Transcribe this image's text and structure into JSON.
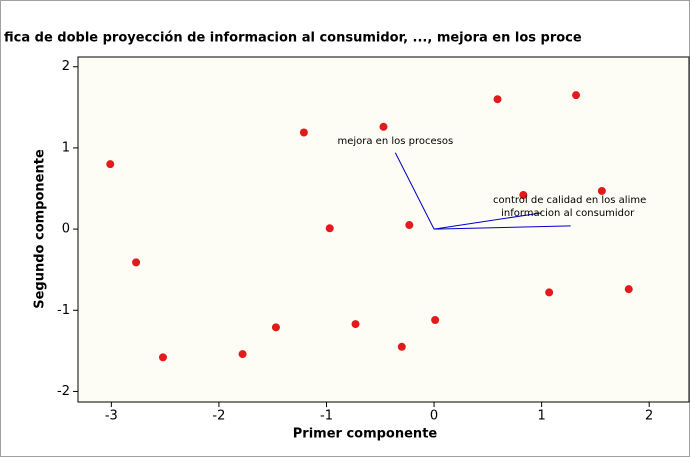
{
  "chart_data": {
    "type": "biplot",
    "title": "fica de doble proyección de informacion al consumidor, ..., mejora en los proce",
    "x_label": "Primer componente",
    "y_label": "Segundo componente",
    "point_color": "#e31a1c",
    "vector_color": "#0000cc",
    "x": [
      -3.01,
      -2.77,
      -2.52,
      -1.78,
      -1.47,
      -1.21,
      -0.97,
      -0.73,
      -0.47,
      -0.3,
      -0.23,
      0.01,
      0.59,
      0.83,
      1.07,
      1.32,
      1.56,
      1.81
    ],
    "y": [
      0.8,
      -0.41,
      -1.58,
      -1.54,
      -1.21,
      1.19,
      0.01,
      -1.17,
      1.26,
      -1.45,
      0.05,
      -1.12,
      1.6,
      0.42,
      -0.78,
      1.65,
      0.47,
      -0.74
    ],
    "vectors": [
      {
        "label": "mejora en los procesos",
        "x": -0.36,
        "y": 0.94
      },
      {
        "label": "control de calidad en los alime",
        "x": 1.0,
        "y": 0.2
      },
      {
        "label": "informacion al consumidor",
        "x": 1.27,
        "y": 0.04
      }
    ],
    "xlim": [
      -3.31,
      2.37
    ],
    "ylim": [
      -2.13,
      2.12
    ],
    "xticks": [
      -3,
      -2,
      -1,
      0,
      1,
      2
    ],
    "yticks": [
      -2,
      -1,
      0,
      1,
      2
    ]
  }
}
